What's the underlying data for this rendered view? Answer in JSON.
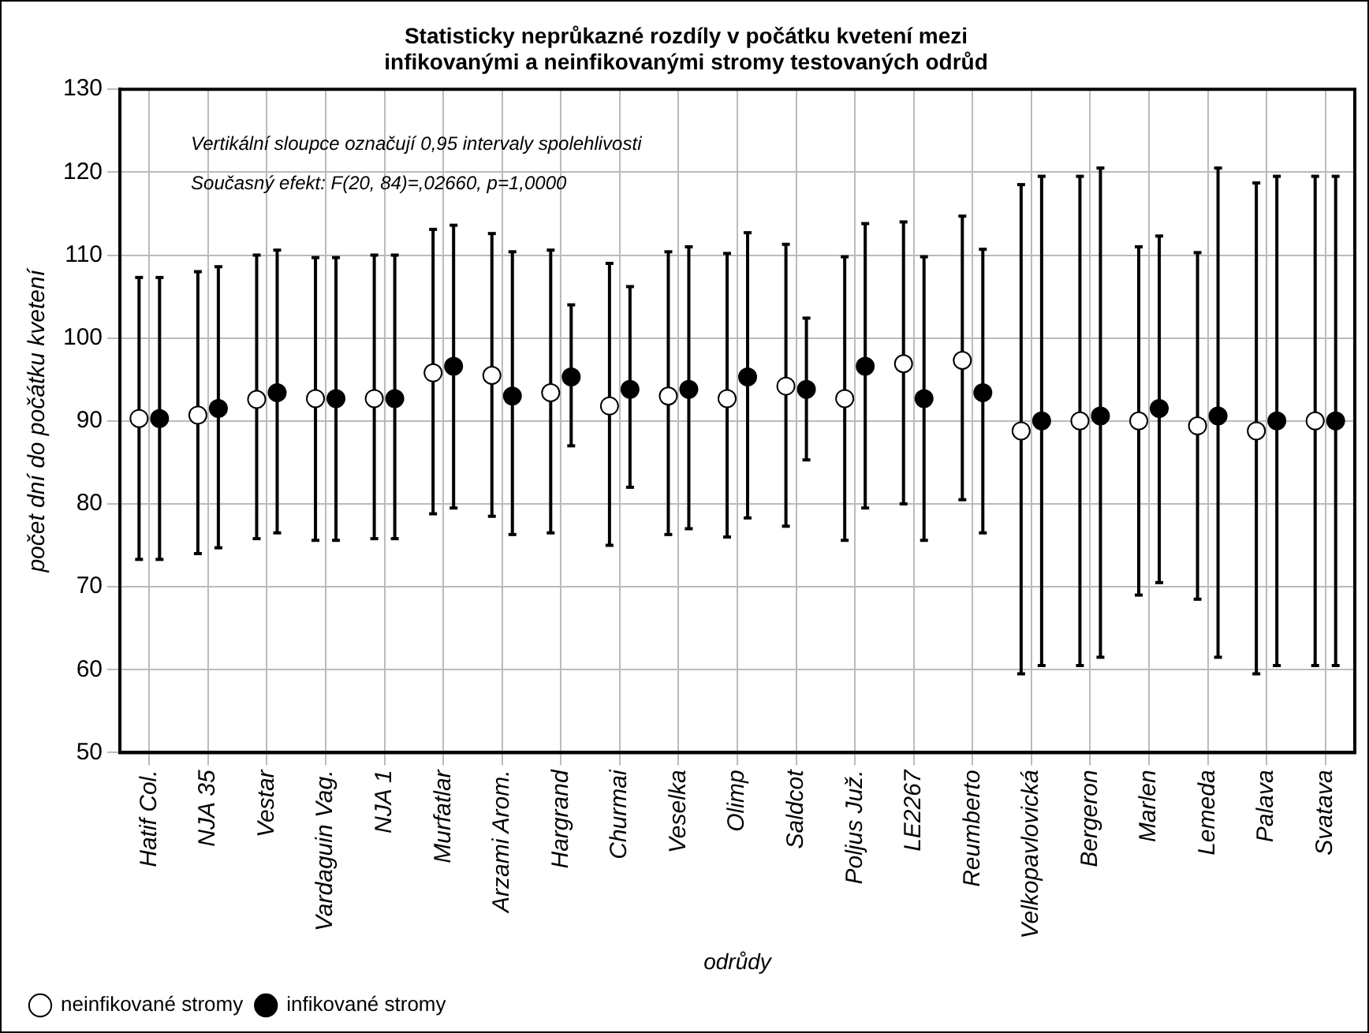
{
  "chart_data": {
    "type": "scatter",
    "title": "Statisticky neprůkazné rozdíly v počátku kvetení mezi\ninfikovanými a neinfikovanými stromy testovaných odrůd",
    "xlabel": "odrůdy",
    "ylabel": "počet dní do počátku kvetení",
    "categories": [
      "Hatif Col.",
      "NJA 35",
      "Vestar",
      "Vardaguin Vag.",
      "NJA 1",
      "Murfatlar",
      "Arzami Arom.",
      "Hargrand",
      "Churmai",
      "Veselka",
      "Olimp",
      "Saldcot",
      "Poljus Juž.",
      "LE2267",
      "Reumberto",
      "Velkopavlovická",
      "Bergeron",
      "Marlen",
      "Lemeda",
      "Palava",
      "Svatava"
    ],
    "series": [
      {
        "name": "neinfikované stromy",
        "color": "#ffffff",
        "values": [
          90.3,
          90.7,
          92.6,
          92.7,
          92.7,
          95.8,
          95.5,
          93.4,
          91.8,
          93,
          92.7,
          94.2,
          92.7,
          96.9,
          97.3,
          88.8,
          90,
          90,
          89.4,
          88.8,
          90
        ],
        "errors": [
          [
            73.3,
            107.3
          ],
          [
            74,
            108
          ],
          [
            75.8,
            110
          ],
          [
            75.6,
            109.7
          ],
          [
            75.8,
            110
          ],
          [
            78.8,
            113.1
          ],
          [
            78.5,
            112.6
          ],
          [
            76.5,
            110.6
          ],
          [
            75,
            109
          ],
          [
            76.3,
            110.4
          ],
          [
            76,
            110.2
          ],
          [
            77.3,
            111.3
          ],
          [
            75.6,
            109.8
          ],
          [
            80,
            114
          ],
          [
            80.5,
            114.7
          ],
          [
            59.5,
            118.5
          ],
          [
            60.5,
            119.5
          ],
          [
            69,
            111
          ],
          [
            68.5,
            110.3
          ],
          [
            59.5,
            118.7
          ],
          [
            60.5,
            119.5
          ]
        ]
      },
      {
        "name": "infikované stromy",
        "color": "#000000",
        "values": [
          90.3,
          91.5,
          93.4,
          92.7,
          92.7,
          96.6,
          93,
          95.3,
          93.8,
          93.8,
          95.3,
          93.8,
          96.6,
          92.7,
          93.4,
          90,
          90.6,
          91.5,
          90.6,
          90,
          90
        ],
        "errors": [
          [
            73.3,
            107.3
          ],
          [
            74.7,
            108.6
          ],
          [
            76.5,
            110.6
          ],
          [
            75.6,
            109.7
          ],
          [
            75.8,
            110
          ],
          [
            79.5,
            113.6
          ],
          [
            76.3,
            110.4
          ],
          [
            87,
            104
          ],
          [
            82,
            106.2
          ],
          [
            77,
            111
          ],
          [
            78.3,
            112.7
          ],
          [
            85.3,
            102.4
          ],
          [
            79.5,
            113.8
          ],
          [
            75.6,
            109.8
          ],
          [
            76.5,
            110.7
          ],
          [
            60.5,
            119.5
          ],
          [
            61.5,
            120.5
          ],
          [
            70.5,
            112.3
          ],
          [
            61.5,
            120.5
          ],
          [
            60.5,
            119.5
          ],
          [
            60.5,
            119.5
          ]
        ]
      }
    ],
    "ylim": [
      50,
      130
    ],
    "yticks": [
      50,
      60,
      70,
      80,
      90,
      100,
      110,
      120,
      130
    ],
    "grid": true,
    "legend": "bottom left",
    "marker": "circle",
    "annotations": [
      "Vertikální sloupce označují 0,95 intervaly spolehlivosti",
      "Současný efekt: F(20, 84)=,02660, p=1,0000"
    ]
  }
}
